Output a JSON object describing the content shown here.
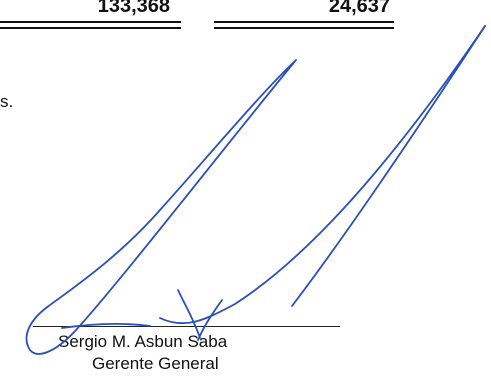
{
  "totals": {
    "col1": "133,368",
    "col2": "24,637"
  },
  "text_fragment": "s.",
  "signatory": {
    "name": "Sergio M. Asbun Saba",
    "title": "Gerente General"
  },
  "colors": {
    "ink": "#111111",
    "signature_ink": "#2a4fb8"
  }
}
